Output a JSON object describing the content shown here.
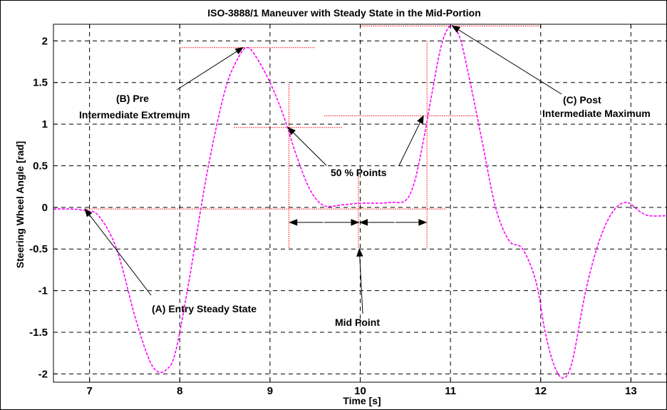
{
  "chart_data": {
    "type": "line",
    "title": "ISO-3888/1 Maneuver with Steady State in the Mid-Portion",
    "xlabel": "Time [s]",
    "ylabel": "Steering Wheel Angle [rad]",
    "xlim": [
      6.6,
      13.4
    ],
    "ylim": [
      -2.1,
      2.2
    ],
    "xticks": [
      7,
      8,
      9,
      10,
      11,
      12,
      13
    ],
    "yticks": [
      -2,
      -1.5,
      -1,
      -0.5,
      0,
      0.5,
      1,
      1.5,
      2
    ],
    "xtick_labels": [
      "7",
      "8",
      "9",
      "10",
      "11",
      "12",
      "13"
    ],
    "ytick_labels": [
      "-2",
      "-1.5",
      "-1",
      "-0.5",
      "0",
      "0.5",
      "1",
      "1.5",
      "2"
    ],
    "grid": true,
    "series": [
      {
        "color": "#ff00ff",
        "style": "dashed",
        "x": [
          6.6,
          6.8,
          6.95,
          7.1,
          7.3,
          7.5,
          7.65,
          7.75,
          7.85,
          7.95,
          8.1,
          8.3,
          8.5,
          8.65,
          8.75,
          8.85,
          9.0,
          9.15,
          9.3,
          9.45,
          9.6,
          9.8,
          10.0,
          10.2,
          10.35,
          10.5,
          10.6,
          10.7,
          10.8,
          10.9,
          11.0,
          11.1,
          11.2,
          11.35,
          11.5,
          11.65,
          11.8,
          11.95,
          12.05,
          12.15,
          12.25,
          12.35,
          12.5,
          12.65,
          12.8,
          12.95,
          13.1,
          13.2,
          13.4
        ],
        "y": [
          -0.02,
          -0.02,
          -0.04,
          -0.1,
          -0.5,
          -1.3,
          -1.8,
          -1.97,
          -1.95,
          -1.75,
          -0.9,
          0.4,
          1.4,
          1.8,
          1.92,
          1.8,
          1.5,
          1.1,
          0.6,
          0.2,
          0.02,
          0.03,
          0.05,
          0.05,
          0.06,
          0.08,
          0.3,
          0.8,
          1.4,
          1.95,
          2.18,
          2.05,
          1.6,
          0.8,
          0.0,
          -0.4,
          -0.5,
          -0.9,
          -1.5,
          -1.9,
          -2.05,
          -1.85,
          -1.0,
          -0.4,
          -0.05,
          0.06,
          -0.05,
          -0.1,
          -0.1
        ]
      }
    ],
    "annotations": {
      "entry": "(A) Entry Steady State",
      "pre_line1": "(B) Pre",
      "pre_line2": "Intermediate Extremum",
      "post_line1": "(C) Post",
      "post_line2": "Intermediate Maximum",
      "fifty": "50 % Points",
      "mid": "Mid Point"
    },
    "colors": {
      "curve": "#ff00ff",
      "guides": "#ff0000",
      "grid": "#000000"
    }
  }
}
